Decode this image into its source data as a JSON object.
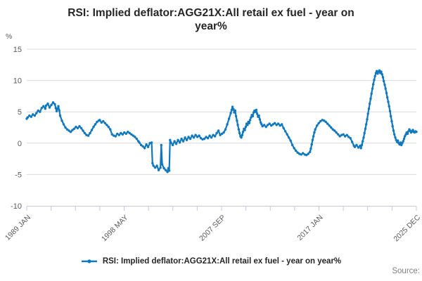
{
  "title_lines": [
    "RSI: Implied deflator:AGG21X:All retail ex fuel - year on",
    "year%"
  ],
  "y_axis_unit": "%",
  "source_label": "Source:",
  "legend": {
    "label": "RSI: Implied deflator:AGG21X:All retail ex fuel - year on year%"
  },
  "colors": {
    "line": "#1078be",
    "grid": "#d9d9d9",
    "axis": "#c3cbdd",
    "tick_text": "#595959",
    "title_text": "#262626",
    "source_text": "#7f7f7f"
  },
  "chart_data": {
    "type": "line",
    "title": "RSI: Implied deflator:AGG21X:All retail ex fuel - year on year%",
    "xlabel": "",
    "ylabel": "%",
    "x_unit": "months since 1989 JAN",
    "x_range_months": [
      0,
      443
    ],
    "ylim": [
      -10,
      15
    ],
    "y_ticks": [
      15,
      10,
      5,
      0,
      -5,
      -10
    ],
    "x_tick_count": 17,
    "x_labeled_ticks": [
      {
        "tick_index": 0,
        "label": "1989 JAN"
      },
      {
        "tick_index": 4,
        "label": "1998 MAY"
      },
      {
        "tick_index": 8,
        "label": "2007 SEP"
      },
      {
        "tick_index": 12,
        "label": "2017 JAN"
      },
      {
        "tick_index": 16,
        "label": "2025 DEC"
      }
    ],
    "grid": "horizontal",
    "legend_position": "bottom",
    "series": [
      {
        "name": "RSI: Implied deflator:AGG21X:All retail ex fuel - year on year%",
        "points": [
          [
            0,
            3.9
          ],
          [
            1,
            4.1
          ],
          [
            3,
            4.4
          ],
          [
            5,
            4.2
          ],
          [
            7,
            4.6
          ],
          [
            9,
            4.4
          ],
          [
            11,
            4.8
          ],
          [
            13,
            5.2
          ],
          [
            15,
            5.0
          ],
          [
            17,
            5.6
          ],
          [
            19,
            5.9
          ],
          [
            21,
            5.5
          ],
          [
            22,
            6.0
          ],
          [
            24,
            6.3
          ],
          [
            26,
            5.7
          ],
          [
            28,
            6.1
          ],
          [
            30,
            6.5
          ],
          [
            32,
            6.2
          ],
          [
            33,
            5.6
          ],
          [
            34,
            5.1
          ],
          [
            35,
            5.5
          ],
          [
            36,
            5.9
          ],
          [
            37,
            5.2
          ],
          [
            38,
            4.4
          ],
          [
            40,
            3.6
          ],
          [
            42,
            3.0
          ],
          [
            44,
            2.5
          ],
          [
            46,
            2.2
          ],
          [
            48,
            2.0
          ],
          [
            50,
            1.8
          ],
          [
            52,
            2.1
          ],
          [
            54,
            2.3
          ],
          [
            56,
            2.6
          ],
          [
            58,
            2.4
          ],
          [
            60,
            2.7
          ],
          [
            62,
            2.4
          ],
          [
            64,
            2.0
          ],
          [
            66,
            1.6
          ],
          [
            68,
            1.3
          ],
          [
            70,
            1.2
          ],
          [
            72,
            1.6
          ],
          [
            74,
            2.1
          ],
          [
            76,
            2.6
          ],
          [
            78,
            3.0
          ],
          [
            80,
            3.4
          ],
          [
            82,
            3.6
          ],
          [
            83,
            3.7
          ],
          [
            85,
            3.3
          ],
          [
            87,
            3.5
          ],
          [
            89,
            3.2
          ],
          [
            91,
            2.9
          ],
          [
            93,
            2.6
          ],
          [
            95,
            2.2
          ],
          [
            97,
            1.4
          ],
          [
            99,
            1.2
          ],
          [
            101,
            1.1
          ],
          [
            103,
            1.5
          ],
          [
            105,
            1.3
          ],
          [
            107,
            1.6
          ],
          [
            109,
            1.4
          ],
          [
            111,
            1.7
          ],
          [
            113,
            1.5
          ],
          [
            115,
            1.8
          ],
          [
            117,
            1.6
          ],
          [
            119,
            1.4
          ],
          [
            121,
            1.2
          ],
          [
            123,
            1.0
          ],
          [
            125,
            0.7
          ],
          [
            127,
            0.3
          ],
          [
            128,
            0.1
          ],
          [
            130,
            -0.3
          ],
          [
            132,
            -0.5
          ],
          [
            134,
            -0.8
          ],
          [
            136,
            -0.2
          ],
          [
            138,
            -0.6
          ],
          [
            140,
            0.0
          ],
          [
            142,
            0.1
          ],
          [
            143,
            -3.2
          ],
          [
            144,
            -3.6
          ],
          [
            146,
            -3.9
          ],
          [
            148,
            -3.6
          ],
          [
            150,
            -4.3
          ],
          [
            152,
            -3.9
          ],
          [
            153,
            -0.3
          ],
          [
            154,
            -3.4
          ],
          [
            156,
            -4.0
          ],
          [
            158,
            -4.3
          ],
          [
            160,
            -4.6
          ],
          [
            161,
            -4.0
          ],
          [
            162,
            -4.4
          ],
          [
            163,
            0.5
          ],
          [
            164,
            0.1
          ],
          [
            166,
            -0.3
          ],
          [
            168,
            0.3
          ],
          [
            170,
            -0.1
          ],
          [
            172,
            0.5
          ],
          [
            174,
            0.1
          ],
          [
            176,
            0.7
          ],
          [
            178,
            0.3
          ],
          [
            180,
            0.9
          ],
          [
            182,
            0.5
          ],
          [
            184,
            1.0
          ],
          [
            186,
            0.7
          ],
          [
            188,
            1.2
          ],
          [
            190,
            0.9
          ],
          [
            192,
            1.3
          ],
          [
            194,
            1.0
          ],
          [
            196,
            1.2
          ],
          [
            198,
            0.8
          ],
          [
            200,
            0.6
          ],
          [
            202,
            0.7
          ],
          [
            204,
            1.0
          ],
          [
            206,
            0.8
          ],
          [
            208,
            1.2
          ],
          [
            210,
            0.9
          ],
          [
            212,
            1.3
          ],
          [
            214,
            1.1
          ],
          [
            216,
            1.6
          ],
          [
            218,
            2.0
          ],
          [
            220,
            1.3
          ],
          [
            222,
            1.5
          ],
          [
            224,
            1.7
          ],
          [
            226,
            2.2
          ],
          [
            228,
            3.0
          ],
          [
            230,
            3.9
          ],
          [
            232,
            4.8
          ],
          [
            233,
            5.3
          ],
          [
            234,
            5.8
          ],
          [
            235,
            5.4
          ],
          [
            236,
            4.9
          ],
          [
            237,
            5.2
          ],
          [
            238,
            4.3
          ],
          [
            239,
            3.6
          ],
          [
            240,
            2.9
          ],
          [
            241,
            2.2
          ],
          [
            242,
            1.6
          ],
          [
            243,
            1.1
          ],
          [
            244,
            0.9
          ],
          [
            245,
            1.3
          ],
          [
            246,
            1.8
          ],
          [
            247,
            2.3
          ],
          [
            248,
            2.1
          ],
          [
            249,
            2.6
          ],
          [
            250,
            3.1
          ],
          [
            251,
            2.9
          ],
          [
            252,
            3.4
          ],
          [
            253,
            3.2
          ],
          [
            254,
            3.7
          ],
          [
            255,
            4.1
          ],
          [
            256,
            4.5
          ],
          [
            257,
            4.3
          ],
          [
            258,
            4.9
          ],
          [
            259,
            5.2
          ],
          [
            260,
            5.0
          ],
          [
            261,
            5.3
          ],
          [
            262,
            4.7
          ],
          [
            263,
            4.2
          ],
          [
            264,
            4.4
          ],
          [
            265,
            3.8
          ],
          [
            266,
            3.3
          ],
          [
            267,
            3.0
          ],
          [
            268,
            2.7
          ],
          [
            270,
            2.9
          ],
          [
            272,
            2.6
          ],
          [
            274,
            2.9
          ],
          [
            276,
            3.1
          ],
          [
            278,
            2.8
          ],
          [
            280,
            3.0
          ],
          [
            282,
            3.2
          ],
          [
            284,
            2.9
          ],
          [
            286,
            3.1
          ],
          [
            288,
            2.8
          ],
          [
            290,
            3.0
          ],
          [
            292,
            2.4
          ],
          [
            294,
            1.9
          ],
          [
            296,
            1.4
          ],
          [
            298,
            0.9
          ],
          [
            300,
            0.4
          ],
          [
            302,
            -0.3
          ],
          [
            304,
            -0.8
          ],
          [
            306,
            -1.2
          ],
          [
            308,
            -1.5
          ],
          [
            310,
            -1.7
          ],
          [
            312,
            -1.8
          ],
          [
            314,
            -1.6
          ],
          [
            316,
            -1.8
          ],
          [
            318,
            -1.9
          ],
          [
            320,
            -1.7
          ],
          [
            322,
            -1.4
          ],
          [
            323,
            -0.9
          ],
          [
            324,
            -0.2
          ],
          [
            325,
            0.5
          ],
          [
            326,
            1.1
          ],
          [
            327,
            1.7
          ],
          [
            328,
            2.2
          ],
          [
            330,
            2.8
          ],
          [
            332,
            3.2
          ],
          [
            334,
            3.5
          ],
          [
            336,
            3.7
          ],
          [
            338,
            3.6
          ],
          [
            340,
            3.4
          ],
          [
            342,
            3.1
          ],
          [
            344,
            2.8
          ],
          [
            346,
            2.5
          ],
          [
            348,
            2.2
          ],
          [
            350,
            2.0
          ],
          [
            352,
            1.7
          ],
          [
            354,
            1.4
          ],
          [
            356,
            1.1
          ],
          [
            358,
            1.3
          ],
          [
            360,
            1.4
          ],
          [
            362,
            1.1
          ],
          [
            364,
            1.3
          ],
          [
            366,
            1.0
          ],
          [
            368,
            0.8
          ],
          [
            370,
            0.2
          ],
          [
            372,
            -0.4
          ],
          [
            373,
            -0.6
          ],
          [
            375,
            -0.3
          ],
          [
            377,
            -0.7
          ],
          [
            379,
            -0.4
          ],
          [
            380,
            -0.8
          ],
          [
            381,
            -0.3
          ],
          [
            382,
            0.3
          ],
          [
            383,
            0.9
          ],
          [
            384,
            1.6
          ],
          [
            385,
            2.3
          ],
          [
            386,
            3.0
          ],
          [
            387,
            3.8
          ],
          [
            388,
            4.7
          ],
          [
            389,
            5.5
          ],
          [
            390,
            6.3
          ],
          [
            391,
            7.1
          ],
          [
            392,
            7.9
          ],
          [
            393,
            8.7
          ],
          [
            394,
            9.4
          ],
          [
            395,
            10.1
          ],
          [
            396,
            10.7
          ],
          [
            397,
            11.2
          ],
          [
            398,
            11.5
          ],
          [
            399,
            11.1
          ],
          [
            400,
            11.4
          ],
          [
            401,
            11.6
          ],
          [
            402,
            11.2
          ],
          [
            403,
            11.4
          ],
          [
            404,
            11.0
          ],
          [
            405,
            10.5
          ],
          [
            406,
            9.9
          ],
          [
            407,
            9.3
          ],
          [
            408,
            8.7
          ],
          [
            409,
            8.0
          ],
          [
            410,
            7.3
          ],
          [
            411,
            6.6
          ],
          [
            412,
            5.9
          ],
          [
            413,
            5.1
          ],
          [
            414,
            4.3
          ],
          [
            415,
            3.5
          ],
          [
            416,
            2.7
          ],
          [
            417,
            2.0
          ],
          [
            418,
            1.4
          ],
          [
            419,
            0.9
          ],
          [
            420,
            0.5
          ],
          [
            421,
            0.2
          ],
          [
            422,
            0.4
          ],
          [
            423,
            0.0
          ],
          [
            424,
            -0.2
          ],
          [
            425,
            0.1
          ],
          [
            426,
            -0.3
          ],
          [
            427,
            0.0
          ],
          [
            428,
            0.3
          ],
          [
            429,
            0.7
          ],
          [
            430,
            1.1
          ],
          [
            431,
            1.4
          ],
          [
            432,
            1.7
          ],
          [
            433,
            1.5
          ],
          [
            434,
            1.9
          ],
          [
            435,
            2.2
          ],
          [
            436,
            2.0
          ],
          [
            437,
            1.7
          ],
          [
            438,
            1.9
          ],
          [
            439,
            2.1
          ],
          [
            440,
            1.8
          ],
          [
            441,
            1.7
          ],
          [
            442,
            1.9
          ],
          [
            443,
            1.8
          ]
        ]
      }
    ]
  }
}
